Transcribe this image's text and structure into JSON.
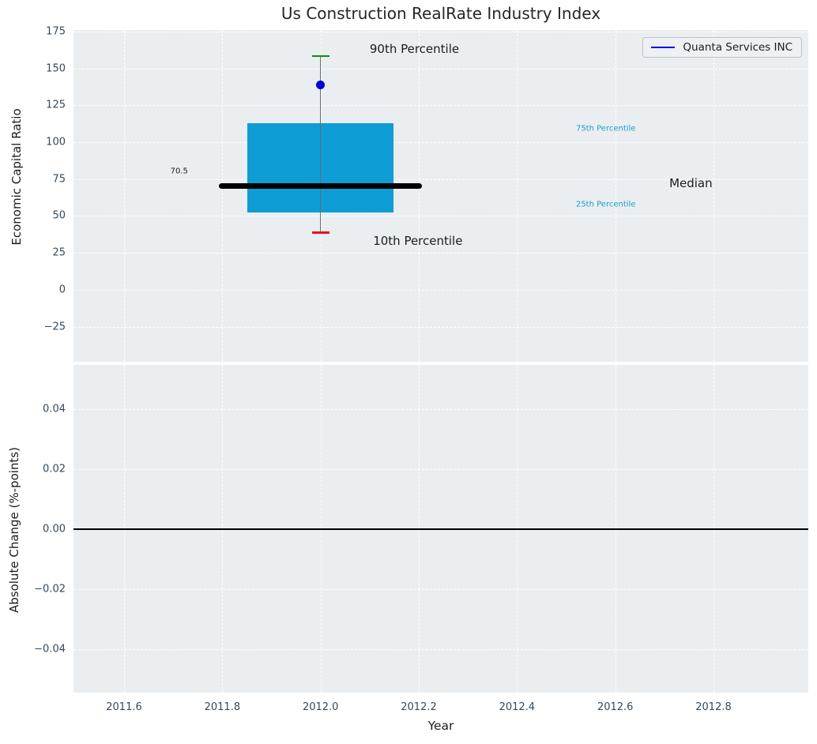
{
  "title": "Us Construction RealRate Industry Index",
  "legend": {
    "label": "Quanta Services INC",
    "line_color": "#0000dd"
  },
  "colors": {
    "figure_bg": "#ffffff",
    "axes_bg": "#eaeef0",
    "grid": "#ffffff",
    "tick_label": "#36495a",
    "text": "#1c1c1c",
    "box_fill": "#0d9dd4",
    "median_line": "#000000",
    "whisker": "#6b6b6b",
    "cap_90th": "#0a8f0a",
    "cap_10th": "#ee0f0f",
    "company_point": "#0000dd",
    "percentile_label": "#1e9ccd",
    "zero_line": "#000000"
  },
  "chart_data": [
    {
      "type": "boxplot",
      "title": "Us Construction RealRate Industry Index",
      "ylabel": "Economic Capital Ratio",
      "xlabel": "",
      "xlim": [
        2011.497,
        2012.993
      ],
      "ylim": [
        -48.8,
        176.1
      ],
      "grid": true,
      "legend_entries": [
        "Quanta Services INC"
      ],
      "legend_position": "upper right",
      "x_ticks": {
        "values": [
          2011.6,
          2011.8,
          2012.0,
          2012.2,
          2012.4,
          2012.6,
          2012.8
        ],
        "labels": [
          "2011.6",
          "2011.8",
          "2012.0",
          "2012.2",
          "2012.4",
          "2012.6",
          "2012.8"
        ],
        "show_labels": false
      },
      "y_ticks": {
        "values": [
          175,
          150,
          125,
          100,
          75,
          50,
          25,
          0,
          -25
        ],
        "labels": [
          "175",
          "150",
          "125",
          "100",
          "75",
          "50",
          "25",
          "0",
          "−25"
        ]
      },
      "box": {
        "x": 2012.0,
        "p10": 38.5,
        "p25": 52.5,
        "median": 70.5,
        "p75": 113,
        "p90": 158.5,
        "box_half_width": 0.149,
        "median_half_width": 0.207,
        "cap_half_width": 0.018
      },
      "series": [
        {
          "name": "Quanta Services INC",
          "x": 2012.0,
          "y": 139,
          "color": "#0000dd"
        }
      ],
      "annotations": [
        {
          "text": "90th Percentile",
          "x": 2012.1,
          "y": 163.5,
          "size": 15,
          "color": "#1c1c1c",
          "anchor": "left"
        },
        {
          "text": "75th Percentile",
          "x": 2012.52,
          "y": 109.2,
          "size": 10,
          "color": "#1e9ccd",
          "anchor": "left"
        },
        {
          "text": "Median",
          "x": 2012.71,
          "y": 72,
          "size": 15,
          "color": "#1c1c1c",
          "anchor": "left"
        },
        {
          "text": "25th Percentile",
          "x": 2012.52,
          "y": 57.5,
          "size": 10,
          "color": "#1e9ccd",
          "anchor": "left"
        },
        {
          "text": "10th Percentile",
          "x": 2012.107,
          "y": 33.2,
          "size": 15,
          "color": "#1c1c1c",
          "anchor": "left"
        },
        {
          "text": "70.5",
          "x": 2011.73,
          "y": 80,
          "size": 10,
          "color": "#1c1c1c",
          "anchor": "right"
        }
      ]
    },
    {
      "type": "line",
      "title": "",
      "ylabel": "Absolute Change (%-points)",
      "xlabel": "Year",
      "xlim": [
        2011.497,
        2012.993
      ],
      "ylim": [
        -0.0545,
        0.0547
      ],
      "grid": true,
      "x_ticks": {
        "values": [
          2011.6,
          2011.8,
          2012.0,
          2012.2,
          2012.4,
          2012.6,
          2012.8
        ],
        "labels": [
          "2011.6",
          "2011.8",
          "2012.0",
          "2012.2",
          "2012.4",
          "2012.6",
          "2012.8"
        ],
        "show_labels": true
      },
      "y_ticks": {
        "values": [
          0.04,
          0.02,
          0,
          -0.02,
          -0.04
        ],
        "labels": [
          "0.04",
          "0.02",
          "0.00",
          "−0.02",
          "−0.04"
        ]
      },
      "zero_line": 0.0,
      "series": []
    }
  ]
}
